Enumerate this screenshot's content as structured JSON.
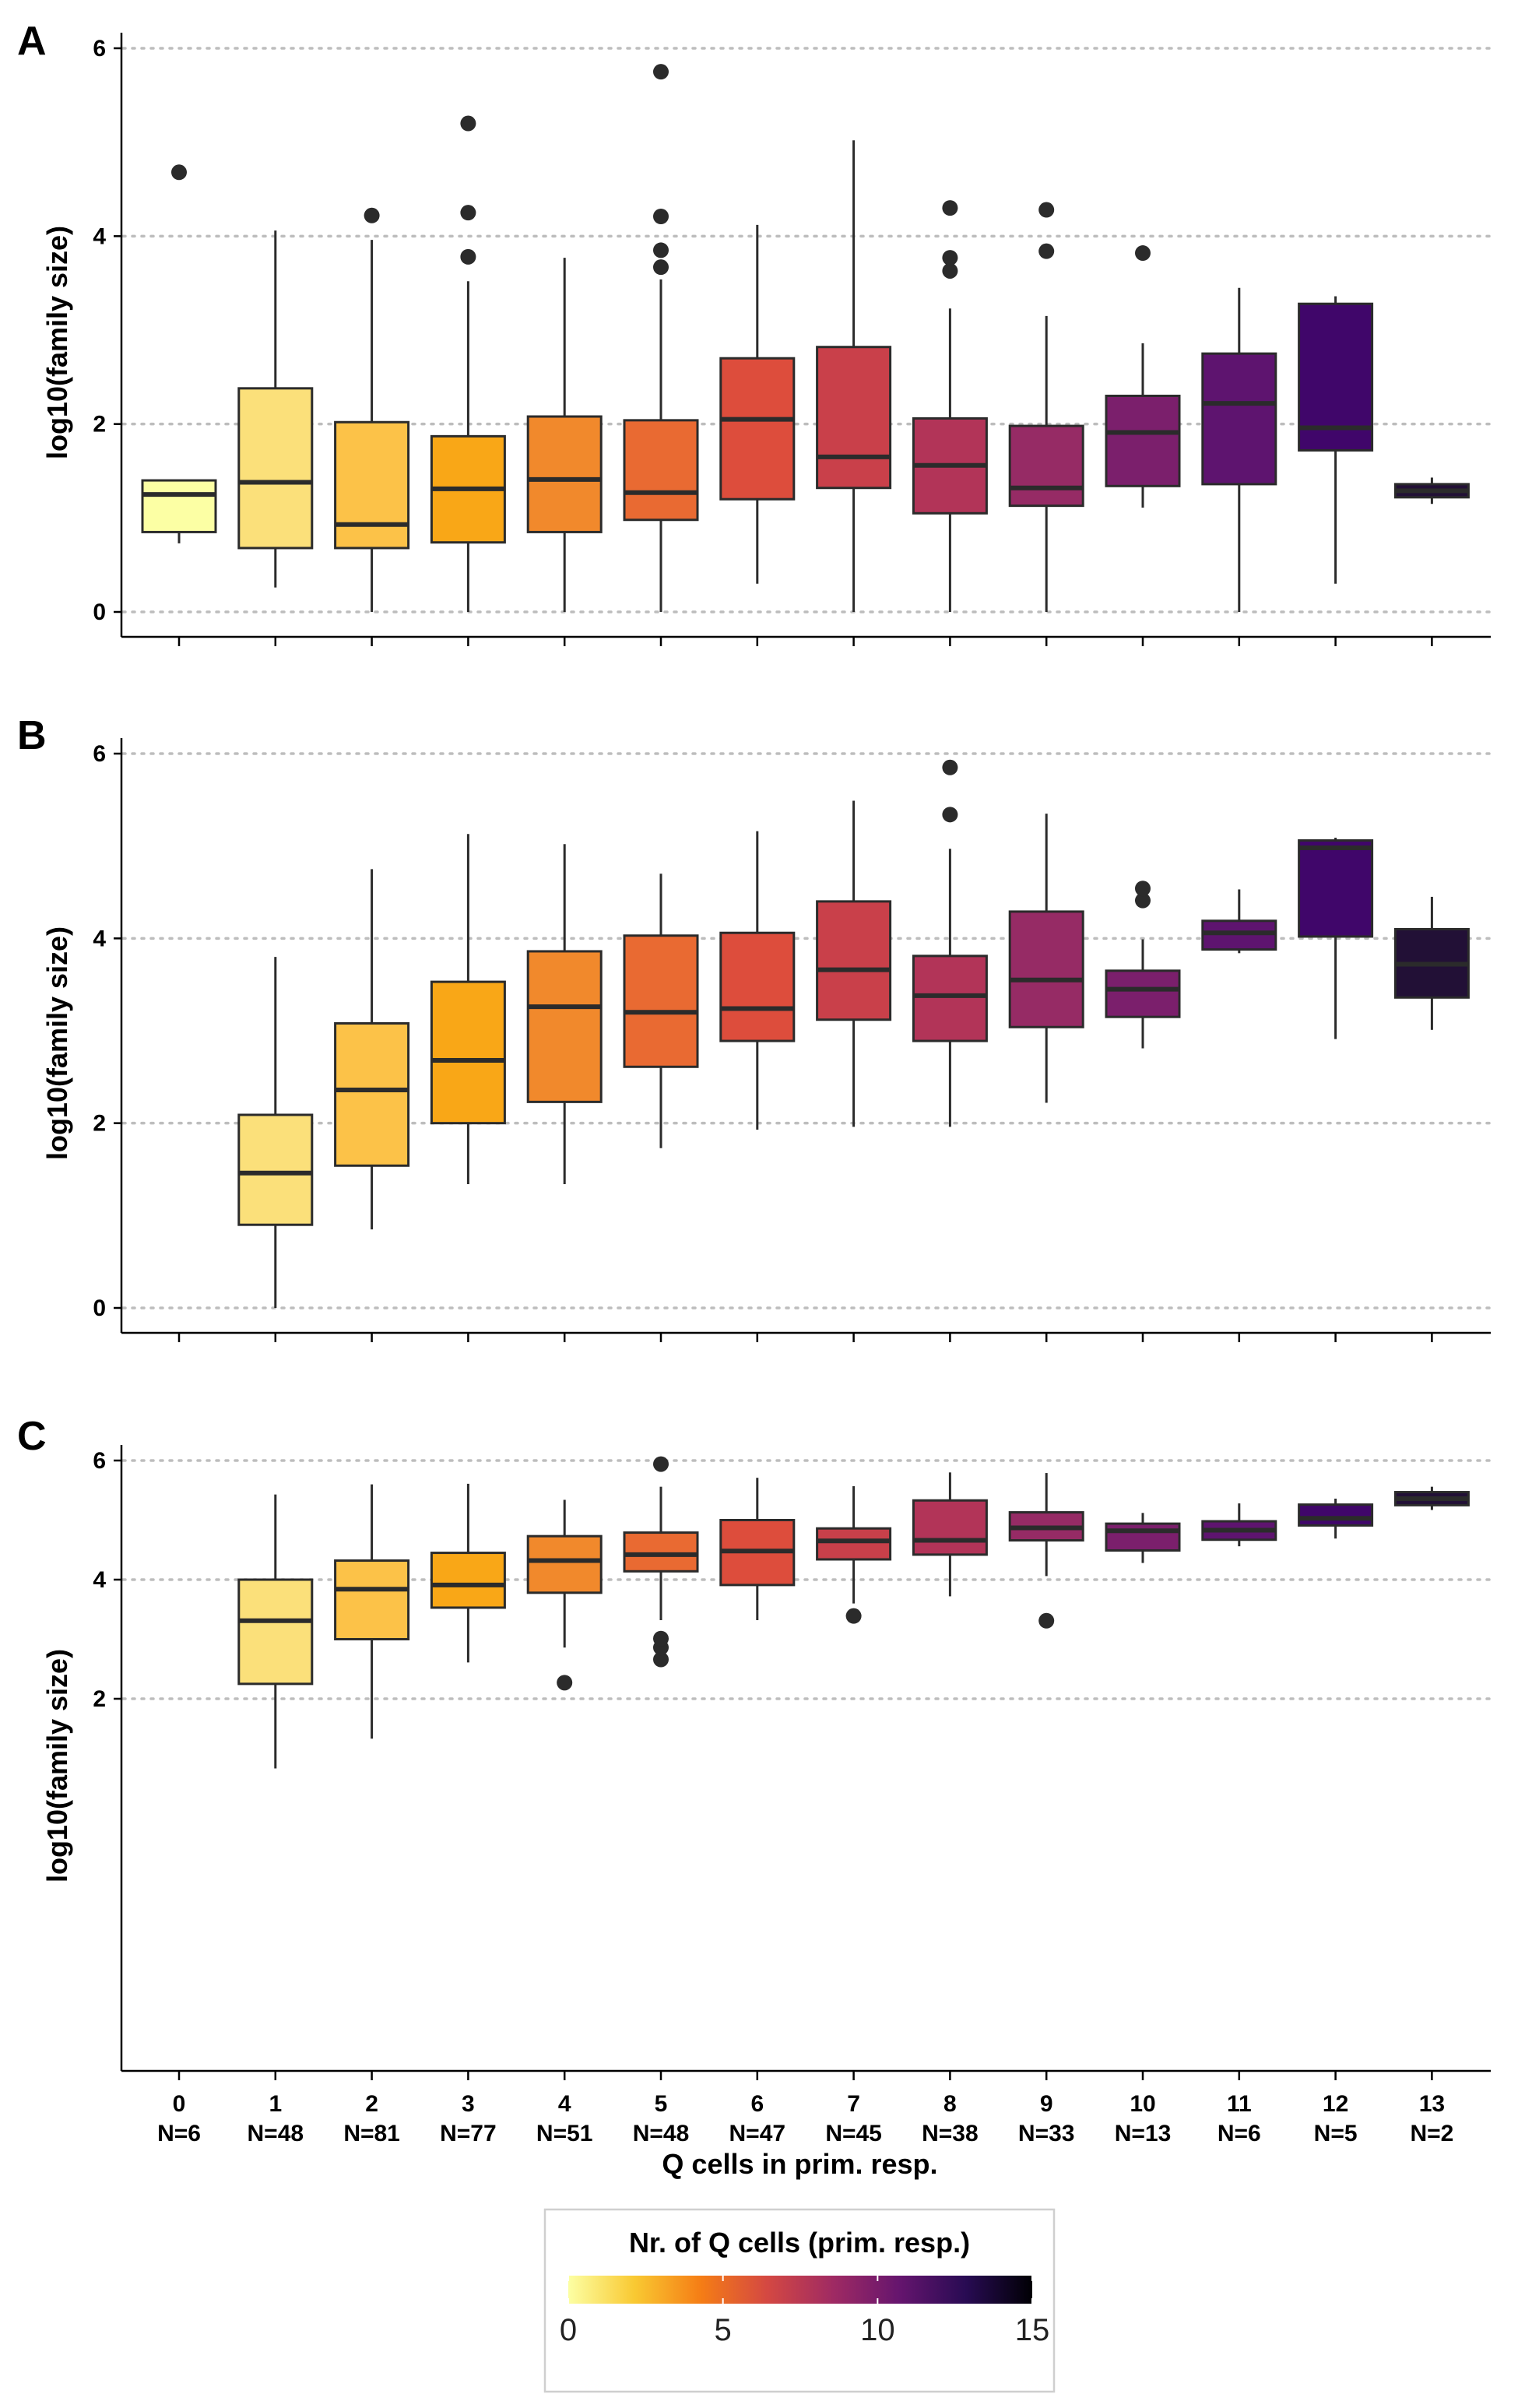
{
  "x_axis": {
    "title": "Q cells in prim. resp.",
    "ticks": [
      {
        "value": "0",
        "count": "N=6"
      },
      {
        "value": "1",
        "count": "N=48"
      },
      {
        "value": "2",
        "count": "N=81"
      },
      {
        "value": "3",
        "count": "N=77"
      },
      {
        "value": "4",
        "count": "N=51"
      },
      {
        "value": "5",
        "count": "N=48"
      },
      {
        "value": "6",
        "count": "N=47"
      },
      {
        "value": "7",
        "count": "N=45"
      },
      {
        "value": "8",
        "count": "N=38"
      },
      {
        "value": "9",
        "count": "N=33"
      },
      {
        "value": "10",
        "count": "N=13"
      },
      {
        "value": "11",
        "count": "N=6"
      },
      {
        "value": "12",
        "count": "N=5"
      },
      {
        "value": "13",
        "count": "N=2"
      }
    ]
  },
  "legend": {
    "title": "Nr. of Q cells (prim. resp.)",
    "min": 0,
    "max": 15,
    "labels": [
      "0",
      "5",
      "10",
      "15"
    ],
    "colors": [
      "#fcffa4",
      "#f9c932",
      "#f57d15",
      "#d44842",
      "#9f2a63",
      "#65156e",
      "#280b53",
      "#000004"
    ]
  },
  "box_colors": [
    "#fcffa4",
    "#fbe07a",
    "#fcc248",
    "#f9a717",
    "#f1892c",
    "#e96a32",
    "#dd4d3c",
    "#c9404a",
    "#b23458",
    "#962b65",
    "#7b1f6c",
    "#5e146f",
    "#40066a",
    "#221036"
  ],
  "chart_data": [
    {
      "panel": "A",
      "type": "box",
      "ylabel": "log10(family size)",
      "ylim": [
        -0.3,
        6.2
      ],
      "yticks": [
        0,
        2,
        4,
        6
      ],
      "grid": "horizontal dotted",
      "show_x_labels": false,
      "categories": [
        "0",
        "1",
        "2",
        "3",
        "4",
        "5",
        "6",
        "7",
        "8",
        "9",
        "10",
        "11",
        "12",
        "13"
      ],
      "boxes": [
        {
          "q1": 0.85,
          "median": 1.25,
          "q3": 1.4,
          "whisker_low": 0.73,
          "whisker_high": 1.4,
          "outliers": [
            4.68
          ]
        },
        {
          "q1": 0.68,
          "median": 1.38,
          "q3": 2.38,
          "whisker_low": 0.26,
          "whisker_high": 4.06,
          "outliers": []
        },
        {
          "q1": 0.68,
          "median": 0.93,
          "q3": 2.02,
          "whisker_low": 0.0,
          "whisker_high": 3.96,
          "outliers": [
            4.22
          ]
        },
        {
          "q1": 0.74,
          "median": 1.31,
          "q3": 1.87,
          "whisker_low": 0.0,
          "whisker_high": 3.52,
          "outliers": [
            3.78,
            4.25,
            5.2
          ]
        },
        {
          "q1": 0.85,
          "median": 1.41,
          "q3": 2.08,
          "whisker_low": 0.0,
          "whisker_high": 3.77,
          "outliers": []
        },
        {
          "q1": 0.98,
          "median": 1.27,
          "q3": 2.04,
          "whisker_low": 0.0,
          "whisker_high": 3.54,
          "outliers": [
            3.67,
            3.85,
            4.21,
            5.75
          ]
        },
        {
          "q1": 1.2,
          "median": 2.05,
          "q3": 2.7,
          "whisker_low": 0.3,
          "whisker_high": 4.12,
          "outliers": []
        },
        {
          "q1": 1.32,
          "median": 1.65,
          "q3": 2.82,
          "whisker_low": 0.0,
          "whisker_high": 5.02,
          "outliers": []
        },
        {
          "q1": 1.05,
          "median": 1.56,
          "q3": 2.06,
          "whisker_low": 0.0,
          "whisker_high": 3.23,
          "outliers": [
            3.63,
            3.77,
            4.3
          ]
        },
        {
          "q1": 1.13,
          "median": 1.32,
          "q3": 1.98,
          "whisker_low": 0.0,
          "whisker_high": 3.15,
          "outliers": [
            3.84,
            4.28
          ]
        },
        {
          "q1": 1.34,
          "median": 1.91,
          "q3": 2.3,
          "whisker_low": 1.11,
          "whisker_high": 2.86,
          "outliers": [
            3.82
          ]
        },
        {
          "q1": 1.36,
          "median": 2.22,
          "q3": 2.75,
          "whisker_low": 0.0,
          "whisker_high": 3.45,
          "outliers": []
        },
        {
          "q1": 1.72,
          "median": 1.96,
          "q3": 3.28,
          "whisker_low": 0.3,
          "whisker_high": 3.36,
          "outliers": []
        },
        {
          "q1": 1.22,
          "median": 1.29,
          "q3": 1.36,
          "whisker_low": 1.15,
          "whisker_high": 1.43,
          "outliers": []
        }
      ]
    },
    {
      "panel": "B",
      "type": "box",
      "ylabel": "log10(family size)",
      "ylim": [
        -0.3,
        6.2
      ],
      "yticks": [
        0,
        2,
        4,
        6
      ],
      "grid": "horizontal dotted",
      "show_x_labels": false,
      "categories": [
        "0",
        "1",
        "2",
        "3",
        "4",
        "5",
        "6",
        "7",
        "8",
        "9",
        "10",
        "11",
        "12",
        "13"
      ],
      "boxes": [
        null,
        {
          "q1": 0.9,
          "median": 1.46,
          "q3": 2.09,
          "whisker_low": 0.0,
          "whisker_high": 3.8,
          "outliers": []
        },
        {
          "q1": 1.54,
          "median": 2.36,
          "q3": 3.08,
          "whisker_low": 0.85,
          "whisker_high": 4.75,
          "outliers": []
        },
        {
          "q1": 2.0,
          "median": 2.68,
          "q3": 3.53,
          "whisker_low": 1.34,
          "whisker_high": 5.13,
          "outliers": []
        },
        {
          "q1": 2.23,
          "median": 3.26,
          "q3": 3.86,
          "whisker_low": 1.34,
          "whisker_high": 5.02,
          "outliers": []
        },
        {
          "q1": 2.61,
          "median": 3.2,
          "q3": 4.03,
          "whisker_low": 1.73,
          "whisker_high": 4.7,
          "outliers": []
        },
        {
          "q1": 2.89,
          "median": 3.24,
          "q3": 4.06,
          "whisker_low": 1.93,
          "whisker_high": 5.16,
          "outliers": []
        },
        {
          "q1": 3.12,
          "median": 3.66,
          "q3": 4.4,
          "whisker_low": 1.96,
          "whisker_high": 5.49,
          "outliers": []
        },
        {
          "q1": 2.89,
          "median": 3.38,
          "q3": 3.81,
          "whisker_low": 1.96,
          "whisker_high": 4.97,
          "outliers": [
            5.34,
            5.85
          ]
        },
        {
          "q1": 3.04,
          "median": 3.55,
          "q3": 4.29,
          "whisker_low": 2.22,
          "whisker_high": 5.35,
          "outliers": []
        },
        {
          "q1": 3.15,
          "median": 3.45,
          "q3": 3.65,
          "whisker_low": 2.81,
          "whisker_high": 3.99,
          "outliers": [
            4.41,
            4.54
          ]
        },
        {
          "q1": 3.88,
          "median": 4.06,
          "q3": 4.19,
          "whisker_low": 3.84,
          "whisker_high": 4.53,
          "outliers": []
        },
        {
          "q1": 4.02,
          "median": 4.98,
          "q3": 5.06,
          "whisker_low": 2.91,
          "whisker_high": 5.09,
          "outliers": []
        },
        {
          "q1": 3.36,
          "median": 3.72,
          "q3": 4.1,
          "whisker_low": 3.01,
          "whisker_high": 4.45,
          "outliers": []
        }
      ]
    },
    {
      "panel": "C",
      "type": "box",
      "ylabel": "log10(family size)",
      "ylim": [
        0.5,
        6.2
      ],
      "yticks": [
        2,
        4,
        6
      ],
      "grid": "horizontal dotted",
      "show_x_labels": true,
      "categories": [
        "0",
        "1",
        "2",
        "3",
        "4",
        "5",
        "6",
        "7",
        "8",
        "9",
        "10",
        "11",
        "12",
        "13"
      ],
      "boxes": [
        null,
        {
          "q1": 2.25,
          "median": 3.31,
          "q3": 4.0,
          "whisker_low": 0.83,
          "whisker_high": 5.43,
          "outliers": []
        },
        {
          "q1": 3.0,
          "median": 3.84,
          "q3": 4.32,
          "whisker_low": 1.33,
          "whisker_high": 5.6,
          "outliers": []
        },
        {
          "q1": 3.53,
          "median": 3.91,
          "q3": 4.45,
          "whisker_low": 2.61,
          "whisker_high": 5.61,
          "outliers": []
        },
        {
          "q1": 3.78,
          "median": 4.32,
          "q3": 4.73,
          "whisker_low": 2.86,
          "whisker_high": 5.34,
          "outliers": [
            2.27
          ]
        },
        {
          "q1": 4.14,
          "median": 4.42,
          "q3": 4.79,
          "whisker_low": 3.32,
          "whisker_high": 5.56,
          "outliers": [
            2.66,
            2.86,
            3.01,
            5.94
          ]
        },
        {
          "q1": 3.91,
          "median": 4.48,
          "q3": 5.0,
          "whisker_low": 3.32,
          "whisker_high": 5.71,
          "outliers": []
        },
        {
          "q1": 4.34,
          "median": 4.65,
          "q3": 4.86,
          "whisker_low": 3.6,
          "whisker_high": 5.57,
          "outliers": [
            3.39
          ]
        },
        {
          "q1": 4.42,
          "median": 4.66,
          "q3": 5.33,
          "whisker_low": 3.72,
          "whisker_high": 5.8,
          "outliers": []
        },
        {
          "q1": 4.66,
          "median": 4.87,
          "q3": 5.13,
          "whisker_low": 4.06,
          "whisker_high": 5.79,
          "outliers": [
            3.31
          ]
        },
        {
          "q1": 4.49,
          "median": 4.82,
          "q3": 4.94,
          "whisker_low": 4.28,
          "whisker_high": 5.12,
          "outliers": []
        },
        {
          "q1": 4.67,
          "median": 4.83,
          "q3": 4.98,
          "whisker_low": 4.56,
          "whisker_high": 5.28,
          "outliers": []
        },
        {
          "q1": 4.91,
          "median": 5.03,
          "q3": 5.26,
          "whisker_low": 4.69,
          "whisker_high": 5.36,
          "outliers": []
        },
        {
          "q1": 5.25,
          "median": 5.36,
          "q3": 5.47,
          "whisker_low": 5.17,
          "whisker_high": 5.56,
          "outliers": []
        }
      ]
    }
  ]
}
